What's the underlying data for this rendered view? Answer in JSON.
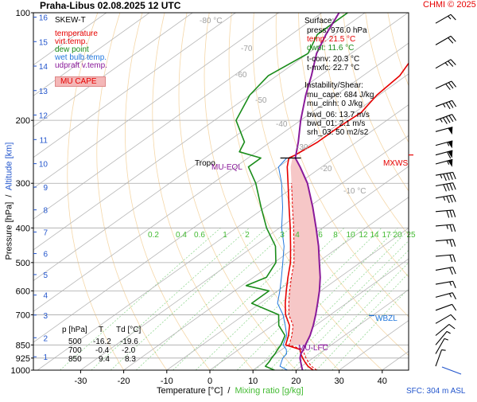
{
  "header": {
    "title": "Praha-Libus   02.08.2025 12 UTC",
    "copyright": "CHMI © 2025"
  },
  "footer": {
    "sfc": "SFC: 304 m ASL"
  },
  "chart_data": {
    "type": "line",
    "subtype": "skew-t log-p diagram",
    "xlabel_temperature": "Temperature [°C]",
    "xlabel_separator": "/",
    "xlabel_mixing": "Mixing ratio [g/kg]",
    "ylabel_pressure": "Pressure [hPa]",
    "ylabel_separator": "/",
    "ylabel_altitude": "Altitude [km]",
    "pressure_ticks": [
      100,
      200,
      300,
      400,
      500,
      600,
      700,
      850,
      925,
      1000
    ],
    "pressure_ylim": [
      1000,
      100
    ],
    "temperature_ticks": [
      -30,
      -20,
      -10,
      0,
      10,
      20,
      30,
      40
    ],
    "temperature_xlim": [
      -40,
      43
    ],
    "altitude_ticks_km": [
      1,
      2,
      3,
      4,
      5,
      6,
      7,
      8,
      9,
      10,
      11,
      12,
      13,
      14,
      15,
      16
    ],
    "isotherm_labels": [
      "-80 °C",
      "-70",
      "-60",
      "-50",
      "-40",
      "-30",
      "-20",
      "-10 °C"
    ],
    "mixing_ratio_labels": [
      "0.2",
      "0.4",
      "0.6",
      "1",
      "2",
      "3",
      "4",
      "6",
      "8",
      "10",
      "12",
      "14",
      "17",
      "20",
      "25"
    ],
    "legend": {
      "title": "SKEW-T",
      "items": [
        {
          "label": "temperature",
          "color": "#e60000"
        },
        {
          "label": "virt.temp.",
          "color": "#e60000"
        },
        {
          "label": "dew point",
          "color": "#1a8c1a"
        },
        {
          "label": "wet bulb temp.",
          "color": "#2277dd"
        },
        {
          "label": "udpraft v.temp.",
          "color": "#8a1a9a"
        },
        {
          "label": "MU CAPE",
          "color": "#f4b7b7"
        }
      ]
    },
    "series": [
      {
        "name": "temperature",
        "color": "#e60000",
        "points": [
          [
            1000,
            24
          ],
          [
            975,
            21.5
          ],
          [
            950,
            19.5
          ],
          [
            925,
            17.6
          ],
          [
            900,
            15.8
          ],
          [
            875,
            14.2
          ],
          [
            850,
            9.4
          ],
          [
            800,
            7
          ],
          [
            750,
            4
          ],
          [
            700,
            -0.4
          ],
          [
            650,
            -4.2
          ],
          [
            600,
            -8
          ],
          [
            550,
            -12
          ],
          [
            500,
            -16.2
          ],
          [
            450,
            -21.5
          ],
          [
            400,
            -27.5
          ],
          [
            350,
            -34.5
          ],
          [
            300,
            -42.5
          ],
          [
            270,
            -48
          ],
          [
            255,
            -50.5
          ],
          [
            250,
            -50
          ],
          [
            230,
            -49
          ],
          [
            210,
            -49
          ],
          [
            190,
            -48.5
          ],
          [
            170,
            -50.5
          ],
          [
            150,
            -51.5
          ],
          [
            130,
            -55
          ],
          [
            115,
            -55
          ],
          [
            100,
            -55
          ]
        ]
      },
      {
        "name": "dew point",
        "color": "#1a8c1a",
        "points": [
          [
            1000,
            15
          ],
          [
            975,
            11.6
          ],
          [
            950,
            11.1
          ],
          [
            925,
            10.4
          ],
          [
            900,
            9.8
          ],
          [
            875,
            9
          ],
          [
            850,
            8.3
          ],
          [
            800,
            6.2
          ],
          [
            750,
            1.5
          ],
          [
            700,
            -2
          ],
          [
            650,
            -12
          ],
          [
            600,
            -12
          ],
          [
            580,
            -19
          ],
          [
            550,
            -17
          ],
          [
            500,
            -19.6
          ],
          [
            450,
            -25
          ],
          [
            400,
            -33
          ],
          [
            350,
            -41
          ],
          [
            300,
            -50
          ],
          [
            270,
            -57
          ],
          [
            255,
            -57
          ],
          [
            245,
            -64
          ],
          [
            230,
            -66
          ],
          [
            200,
            -75
          ],
          [
            170,
            -80
          ],
          [
            150,
            -82
          ],
          [
            130,
            -80
          ],
          [
            115,
            -84
          ],
          [
            100,
            -84
          ]
        ]
      },
      {
        "name": "wet bulb temp.",
        "color": "#2277dd",
        "points": [
          [
            1000,
            18
          ],
          [
            975,
            15
          ],
          [
            950,
            14
          ],
          [
            925,
            13
          ],
          [
            900,
            12.5
          ],
          [
            875,
            11
          ],
          [
            850,
            8.8
          ],
          [
            800,
            6.6
          ],
          [
            750,
            3
          ],
          [
            700,
            -1
          ],
          [
            650,
            -6
          ],
          [
            600,
            -9.5
          ],
          [
            550,
            -13.5
          ],
          [
            500,
            -18
          ],
          [
            450,
            -23
          ],
          [
            400,
            -29.5
          ],
          [
            350,
            -36
          ],
          [
            300,
            -44
          ],
          [
            270,
            -50
          ],
          [
            255,
            -51
          ]
        ]
      },
      {
        "name": "udpraft v.temp.",
        "color": "#8a1a9a",
        "points": [
          [
            1000,
            21.5
          ],
          [
            975,
            20
          ],
          [
            950,
            18.5
          ],
          [
            925,
            17
          ],
          [
            900,
            15.8
          ],
          [
            875,
            15
          ],
          [
            850,
            14
          ],
          [
            800,
            12
          ],
          [
            750,
            9.5
          ],
          [
            700,
            6.6
          ],
          [
            650,
            3.3
          ],
          [
            600,
            -0.3
          ],
          [
            550,
            -4.5
          ],
          [
            500,
            -9.5
          ],
          [
            450,
            -15
          ],
          [
            400,
            -21.5
          ],
          [
            350,
            -29
          ],
          [
            300,
            -38
          ],
          [
            270,
            -45
          ],
          [
            255,
            -49
          ],
          [
            230,
            -53.5
          ],
          [
            200,
            -60
          ],
          [
            170,
            -67
          ],
          [
            150,
            -72
          ],
          [
            130,
            -78
          ],
          [
            115,
            -82
          ],
          [
            100,
            -86
          ]
        ]
      }
    ],
    "annotations": {
      "tropo": "Tropo",
      "mu_eql": "MU-EQL",
      "mu_lfc": "MU-LFC",
      "mxws": "MXWS",
      "wbzl": "WBZL"
    },
    "surface_box": {
      "title": "Surface:",
      "rows": [
        {
          "text": "press: 976.0 hPa",
          "color": "#000000"
        },
        {
          "text": "temp: 21.5 °C",
          "color": "#e60000"
        },
        {
          "text": "dwpt: 11.6 °C",
          "color": "#1a8c1a"
        },
        {
          "text": "t-conv: 20.3 °C",
          "color": "#000000"
        },
        {
          "text": "t-mxfc: 22.7 °C",
          "color": "#000000"
        }
      ]
    },
    "instability_box": {
      "title": "Instability/Shear:",
      "rows": [
        "mu_cape: 684 J/kg",
        "mu_cinh: 0 J/kg",
        "bwd_06: 13.7 m/s",
        "bwd_01: 2.1 m/s",
        "srh_03: 50 m2/s2"
      ]
    },
    "level_table": {
      "headers": [
        "p [hPa]",
        "T",
        "Td [°C]"
      ],
      "rows": [
        [
          "500",
          "-16.2",
          "-19.6"
        ],
        [
          "700",
          "-0.4",
          "-2.0"
        ],
        [
          "850",
          "9.4",
          "8.3"
        ]
      ]
    },
    "wind_barbs": [
      {
        "p": 107,
        "dir": 240,
        "spd": 15
      },
      {
        "p": 123,
        "dir": 240,
        "spd": 20
      },
      {
        "p": 143,
        "dir": 240,
        "spd": 25
      },
      {
        "p": 163,
        "dir": 245,
        "spd": 30
      },
      {
        "p": 183,
        "dir": 250,
        "spd": 35
      },
      {
        "p": 200,
        "dir": 250,
        "spd": 45
      },
      {
        "p": 215,
        "dir": 255,
        "spd": 50
      },
      {
        "p": 235,
        "dir": 255,
        "spd": 55
      },
      {
        "p": 250,
        "dir": 255,
        "spd": 60
      },
      {
        "p": 265,
        "dir": 255,
        "spd": 55
      },
      {
        "p": 285,
        "dir": 260,
        "spd": 45
      },
      {
        "p": 305,
        "dir": 260,
        "spd": 40
      },
      {
        "p": 330,
        "dir": 260,
        "spd": 35
      },
      {
        "p": 360,
        "dir": 265,
        "spd": 30
      },
      {
        "p": 395,
        "dir": 265,
        "spd": 25
      },
      {
        "p": 435,
        "dir": 265,
        "spd": 25
      },
      {
        "p": 480,
        "dir": 265,
        "spd": 20
      },
      {
        "p": 525,
        "dir": 260,
        "spd": 20
      },
      {
        "p": 575,
        "dir": 260,
        "spd": 15
      },
      {
        "p": 625,
        "dir": 255,
        "spd": 15
      },
      {
        "p": 680,
        "dir": 250,
        "spd": 10
      },
      {
        "p": 740,
        "dir": 240,
        "spd": 10
      },
      {
        "p": 800,
        "dir": 230,
        "spd": 10
      },
      {
        "p": 850,
        "dir": 220,
        "spd": 5
      },
      {
        "p": 900,
        "dir": 210,
        "spd": 5
      },
      {
        "p": 975,
        "dir": 200,
        "spd": 5
      }
    ]
  }
}
